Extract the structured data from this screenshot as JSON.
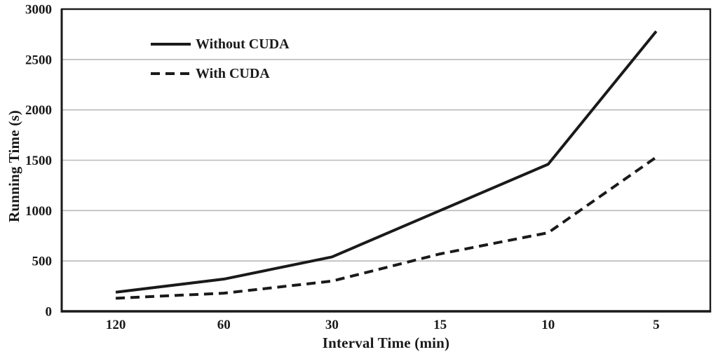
{
  "figure": {
    "background": "#ffffff",
    "text_color": "#1a1a1a"
  },
  "chart_data": {
    "type": "line",
    "title": "",
    "xlabel": "Interval Time (min)",
    "ylabel": "Running Time (s)",
    "categories": [
      "120",
      "60",
      "30",
      "15",
      "10",
      "5"
    ],
    "series": [
      {
        "name": "Without CUDA",
        "style": "solid",
        "color": "#1a1a1a",
        "values": [
          190,
          320,
          540,
          1000,
          1460,
          2780
        ]
      },
      {
        "name": "With CUDA",
        "style": "dashed",
        "color": "#1a1a1a",
        "values": [
          130,
          180,
          300,
          570,
          780,
          1530
        ]
      }
    ],
    "ylim": [
      0,
      3000
    ],
    "yticks": [
      0,
      500,
      1000,
      1500,
      2000,
      2500,
      3000
    ],
    "grid": true,
    "gridline_color": "#b9b9b9",
    "axis_color": "#1a1a1a",
    "legend_position": "top-left-inside"
  }
}
